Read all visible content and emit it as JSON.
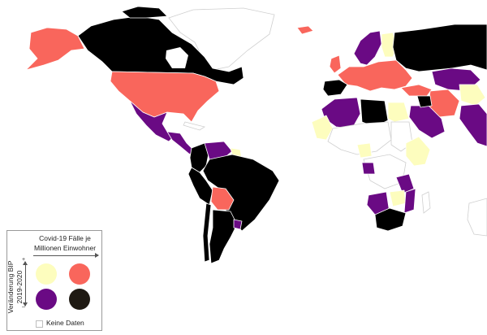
{
  "map": {
    "colors": {
      "light": "#fdfdbe",
      "red": "#f9665c",
      "purple": "#6a0a84",
      "black": "#000000",
      "nodata": "#ffffff"
    },
    "regions": [
      {
        "name": "Greenland",
        "category": "nodata"
      },
      {
        "name": "Canada",
        "category": "black"
      },
      {
        "name": "Alaska",
        "category": "red"
      },
      {
        "name": "United States",
        "category": "red"
      },
      {
        "name": "Mexico",
        "category": "purple"
      },
      {
        "name": "Central America",
        "category": "purple"
      },
      {
        "name": "Venezuela",
        "category": "purple"
      },
      {
        "name": "Colombia",
        "category": "black"
      },
      {
        "name": "Brazil",
        "category": "black"
      },
      {
        "name": "Bolivia",
        "category": "red"
      },
      {
        "name": "Argentina",
        "category": "black"
      },
      {
        "name": "Uruguay",
        "category": "purple"
      },
      {
        "name": "Russia",
        "category": "black"
      },
      {
        "name": "Scandinavia",
        "category": "purple"
      },
      {
        "name": "Finland",
        "category": "light"
      },
      {
        "name": "Europe",
        "category": "red"
      },
      {
        "name": "Spain",
        "category": "black"
      },
      {
        "name": "Turkey",
        "category": "red"
      },
      {
        "name": "Kazakhstan",
        "category": "purple"
      },
      {
        "name": "Iran",
        "category": "red"
      },
      {
        "name": "Saudi Arabia",
        "category": "purple"
      },
      {
        "name": "Algeria",
        "category": "purple"
      },
      {
        "name": "Libya",
        "category": "black"
      },
      {
        "name": "Egypt",
        "category": "light"
      },
      {
        "name": "West Africa",
        "category": "light"
      },
      {
        "name": "East Africa",
        "category": "light"
      },
      {
        "name": "Angola",
        "category": "purple"
      },
      {
        "name": "Zambia",
        "category": "light"
      },
      {
        "name": "South Africa",
        "category": "black"
      }
    ]
  },
  "legend": {
    "title_line1": "Covid-19 Fälle je",
    "title_line2": "Millionen Einwohner",
    "y_label_line1": "Veränderung BIP",
    "y_label_line2": "2019-2020",
    "plus": "+",
    "minus": "–",
    "nodata_label": "Keine Daten",
    "swatches": [
      {
        "name": "low-cases-high-gdp",
        "color": "#fdfdbe"
      },
      {
        "name": "high-cases-high-gdp",
        "color": "#f9665c"
      },
      {
        "name": "low-cases-low-gdp",
        "color": "#6a0a84"
      },
      {
        "name": "high-cases-low-gdp",
        "color": "#1f1a13"
      }
    ]
  }
}
